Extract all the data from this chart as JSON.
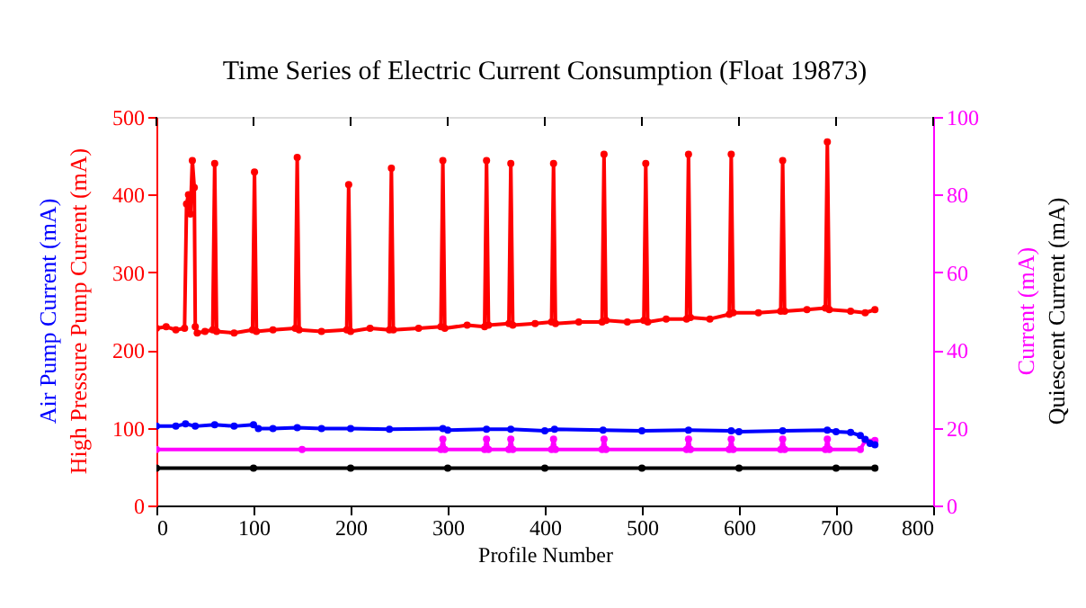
{
  "chart_data": {
    "type": "line",
    "title": "Time Series of Electric Current Consumption (Float 19873)",
    "xlabel": "Profile Number",
    "xlim": [
      0,
      800
    ],
    "xticks": [
      0,
      100,
      200,
      300,
      400,
      500,
      600,
      700,
      800
    ],
    "ylim": [
      0,
      500
    ],
    "yticks": [
      0,
      100,
      200,
      300,
      400,
      500
    ],
    "y2lim": [
      0,
      100
    ],
    "y2ticks": [
      0,
      20,
      40,
      60,
      80,
      100
    ],
    "marker": "circle",
    "line_style": "solid",
    "grid": false,
    "legend": false,
    "series": [
      {
        "name": "Air Pump Current (mA)",
        "color": "#0000ff",
        "x": [
          0,
          20,
          30,
          40,
          60,
          80,
          100,
          105,
          120,
          145,
          170,
          200,
          240,
          295,
          300,
          340,
          365,
          400,
          410,
          460,
          500,
          548,
          592,
          600,
          645,
          691,
          700,
          715,
          725,
          730,
          735,
          740
        ],
        "values": [
          102,
          102,
          105,
          102,
          104,
          102,
          104,
          99,
          99,
          100,
          99,
          99,
          98,
          99,
          97,
          98,
          98,
          96,
          98,
          97,
          96,
          97,
          96,
          95,
          96,
          97,
          95,
          94,
          90,
          85,
          80,
          78
        ]
      },
      {
        "name": "High Pressure Pump Current (mA)",
        "color": "#ff0000",
        "x": [
          0,
          10,
          20,
          29,
          31,
          33,
          35,
          37,
          39,
          40,
          42,
          50,
          58,
          60,
          62,
          80,
          99,
          101,
          103,
          120,
          143,
          145,
          147,
          170,
          196,
          198,
          200,
          220,
          240,
          242,
          244,
          270,
          293,
          295,
          297,
          320,
          338,
          340,
          342,
          363,
          365,
          367,
          390,
          407,
          409,
          411,
          435,
          459,
          461,
          463,
          485,
          502,
          504,
          506,
          525,
          546,
          548,
          550,
          570,
          590,
          592,
          594,
          620,
          643,
          645,
          647,
          670,
          689,
          691,
          693,
          715,
          730,
          740
        ],
        "values": [
          228,
          230,
          226,
          228,
          388,
          400,
          375,
          444,
          409,
          230,
          222,
          224,
          226,
          440,
          224,
          222,
          226,
          429,
          224,
          226,
          228,
          448,
          226,
          224,
          226,
          413,
          224,
          228,
          226,
          434,
          226,
          228,
          230,
          444,
          228,
          232,
          230,
          444,
          232,
          234,
          440,
          232,
          234,
          236,
          440,
          234,
          236,
          236,
          452,
          238,
          236,
          238,
          440,
          236,
          240,
          240,
          452,
          242,
          240,
          246,
          452,
          248,
          248,
          250,
          444,
          250,
          252,
          254,
          468,
          252,
          250,
          248,
          252
        ]
      },
      {
        "name": "Current (mA)",
        "color": "#ff00ff",
        "axis": "y2",
        "x": [
          0,
          150,
          293,
          295,
          297,
          338,
          340,
          342,
          363,
          365,
          367,
          407,
          409,
          411,
          459,
          461,
          463,
          546,
          548,
          550,
          590,
          592,
          594,
          643,
          645,
          647,
          689,
          691,
          693,
          725,
          730,
          740
        ],
        "values": [
          14.4,
          14.4,
          14.4,
          17.1,
          14.4,
          14.4,
          17.1,
          14.4,
          14.4,
          17.1,
          14.4,
          14.4,
          17.1,
          14.4,
          14.4,
          17.1,
          14.4,
          14.4,
          17.1,
          14.4,
          14.4,
          17.1,
          14.4,
          14.4,
          17.1,
          14.4,
          14.4,
          17.1,
          14.4,
          14.4,
          16.7,
          16.7
        ]
      },
      {
        "name": "Quiescent Current (mA)",
        "color": "#000000",
        "axis": "y2",
        "x": [
          0,
          100,
          200,
          300,
          400,
          500,
          600,
          700,
          740
        ],
        "values": [
          9.6,
          9.6,
          9.6,
          9.6,
          9.6,
          9.6,
          9.6,
          9.6,
          9.6
        ]
      }
    ]
  }
}
